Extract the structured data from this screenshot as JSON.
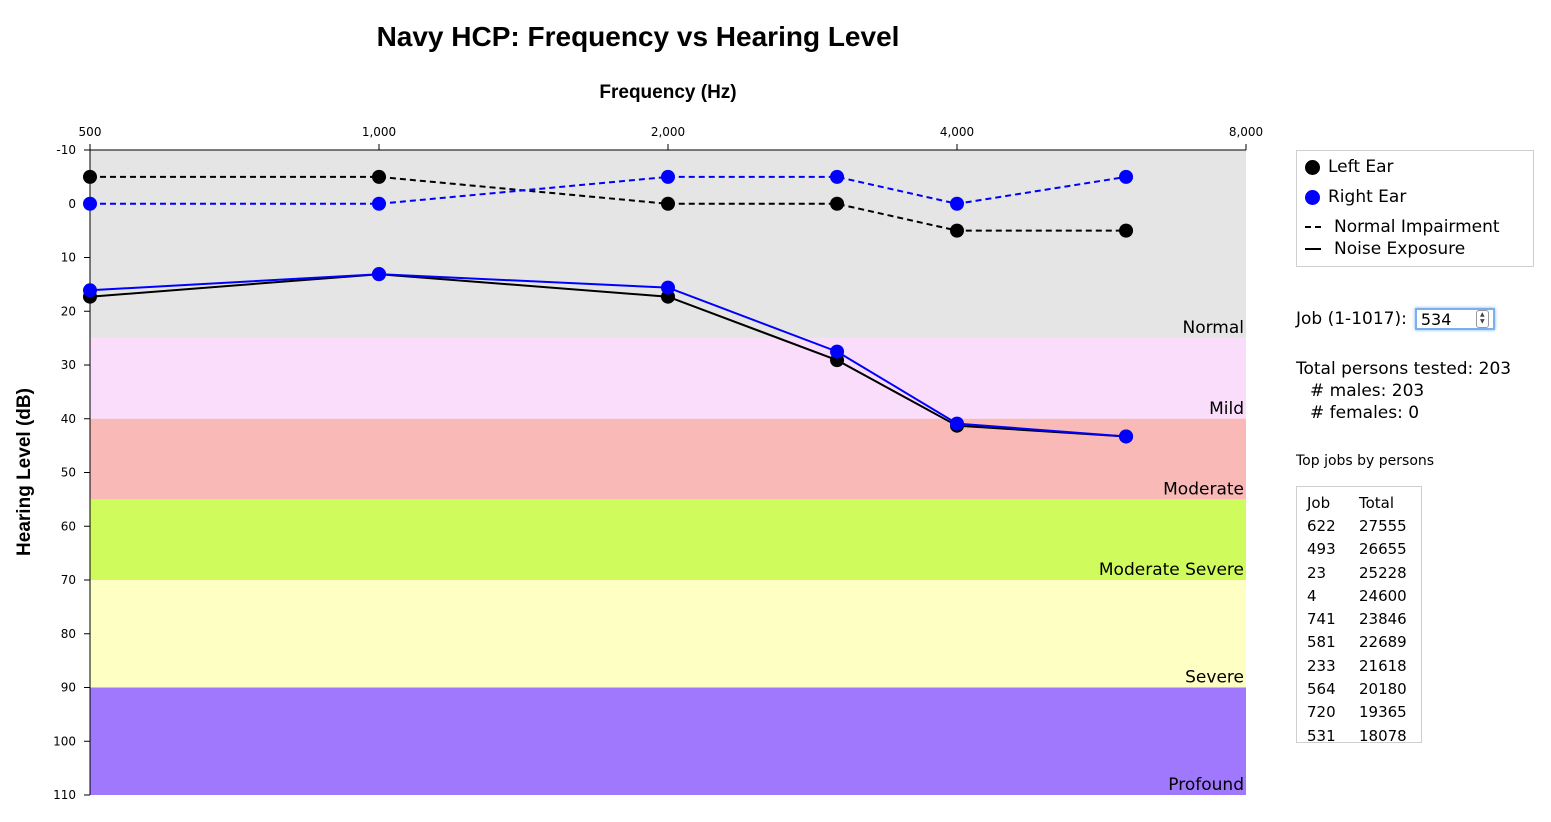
{
  "chart_data": {
    "type": "line",
    "title": "Navy HCP: Frequency vs Hearing Level",
    "xlabel": "Frequency (Hz)",
    "ylabel": "Hearing Level (dB)",
    "x_scale": "log",
    "x_ticks": [
      500,
      1000,
      2000,
      4000,
      8000
    ],
    "x_tick_labels": [
      "500",
      "1,000",
      "2,000",
      "4,000",
      "8,000"
    ],
    "xlim": [
      500,
      8000
    ],
    "y_ticks": [
      -10,
      0,
      10,
      20,
      30,
      40,
      50,
      60,
      70,
      80,
      90,
      100,
      110
    ],
    "ylim": [
      -10,
      110
    ],
    "y_inverted": true,
    "bands": [
      {
        "label": "Normal",
        "from": -10,
        "to": 25,
        "color": "#e5e5e5"
      },
      {
        "label": "Mild",
        "from": 25,
        "to": 40,
        "color": "#f9ddfb"
      },
      {
        "label": "Moderate",
        "from": 40,
        "to": 55,
        "color": "#f8b9b7"
      },
      {
        "label": "Moderate Severe",
        "from": 55,
        "to": 70,
        "color": "#cffb5d"
      },
      {
        "label": "Severe",
        "from": 70,
        "to": 90,
        "color": "#feffc2"
      },
      {
        "label": "Profound",
        "from": 90,
        "to": 110,
        "color": "#9f78fd"
      }
    ],
    "series": [
      {
        "ear": "left",
        "kind": "normal",
        "style": "dashed",
        "color": "#000000",
        "x": [
          500,
          1000,
          2000,
          3000,
          4000,
          6000
        ],
        "y": [
          -5,
          -5,
          0,
          0,
          5,
          5
        ]
      },
      {
        "ear": "right",
        "kind": "normal",
        "style": "dashed",
        "color": "#0000ff",
        "x": [
          500,
          1000,
          2000,
          3000,
          4000,
          6000
        ],
        "y": [
          0,
          0,
          -5,
          -5,
          0,
          -5
        ]
      },
      {
        "ear": "left",
        "kind": "noise",
        "style": "solid",
        "color": "#000000",
        "x": [
          500,
          1000,
          2000,
          3000,
          4000,
          6000
        ],
        "y": [
          17.3,
          13.1,
          17.3,
          29.1,
          41.3,
          43.3
        ]
      },
      {
        "ear": "right",
        "kind": "noise",
        "style": "solid",
        "color": "#0000ff",
        "x": [
          500,
          1000,
          2000,
          3000,
          4000,
          6000
        ],
        "y": [
          16.1,
          13.1,
          15.6,
          27.5,
          40.9,
          43.3
        ]
      }
    ]
  },
  "legend": {
    "items": [
      {
        "label": "Left Ear",
        "kind": "dot",
        "color": "#000000"
      },
      {
        "label": "Right Ear",
        "kind": "dot",
        "color": "#0000ff"
      },
      {
        "label": "Normal Impairment",
        "kind": "dash"
      },
      {
        "label": "Noise Exposure",
        "kind": "solid"
      }
    ]
  },
  "job": {
    "label": "Job (1-1017):",
    "value": "534"
  },
  "stats": {
    "total": "Total persons tested: 203",
    "males": "# males: 203",
    "females": "# females: 0"
  },
  "top_jobs": {
    "title": "Top jobs by persons",
    "headers": [
      "Job",
      "Total"
    ],
    "rows": [
      [
        "622",
        "27555"
      ],
      [
        "493",
        "26655"
      ],
      [
        "23",
        "25228"
      ],
      [
        "4",
        "24600"
      ],
      [
        "741",
        "23846"
      ],
      [
        "581",
        "22689"
      ],
      [
        "233",
        "21618"
      ],
      [
        "564",
        "20180"
      ],
      [
        "720",
        "19365"
      ],
      [
        "531",
        "18078"
      ]
    ]
  }
}
